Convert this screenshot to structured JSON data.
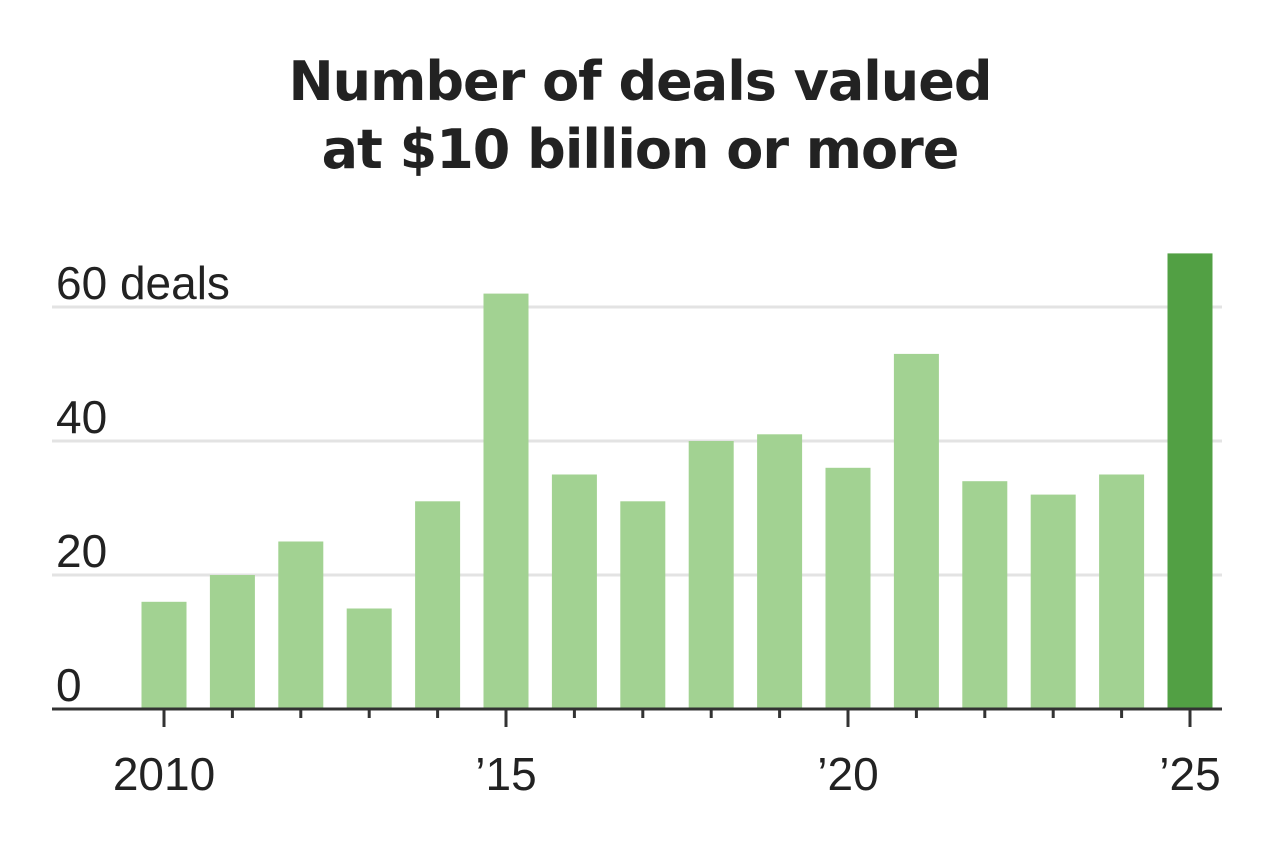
{
  "chart_data": {
    "type": "bar",
    "title_lines": [
      "Number of deals valued",
      "at $10 billion or more"
    ],
    "xlabel": "",
    "ylabel": "",
    "categories": [
      "2010",
      "2011",
      "2012",
      "2013",
      "2014",
      "2015",
      "2016",
      "2017",
      "2018",
      "2019",
      "2020",
      "2021",
      "2022",
      "2023",
      "2024",
      "2025"
    ],
    "values": [
      16,
      20,
      25,
      15,
      31,
      62,
      35,
      31,
      40,
      41,
      36,
      53,
      34,
      32,
      35,
      68
    ],
    "highlight_index": 15,
    "ylim": [
      0,
      70
    ],
    "y_ticks": [
      {
        "value": 0,
        "label": "0"
      },
      {
        "value": 20,
        "label": "20"
      },
      {
        "value": 40,
        "label": "40"
      },
      {
        "value": 60,
        "label": "60 deals"
      }
    ],
    "x_tick_labels": [
      {
        "category": "2010",
        "label": "2010"
      },
      {
        "category": "2015",
        "label": "’15"
      },
      {
        "category": "2020",
        "label": "’20"
      },
      {
        "category": "2025",
        "label": "’25"
      }
    ],
    "grid": true,
    "colors": {
      "bar": "#a2d292",
      "highlight": "#52a044",
      "grid": "#e3e3e3",
      "axis": "#333333"
    }
  }
}
